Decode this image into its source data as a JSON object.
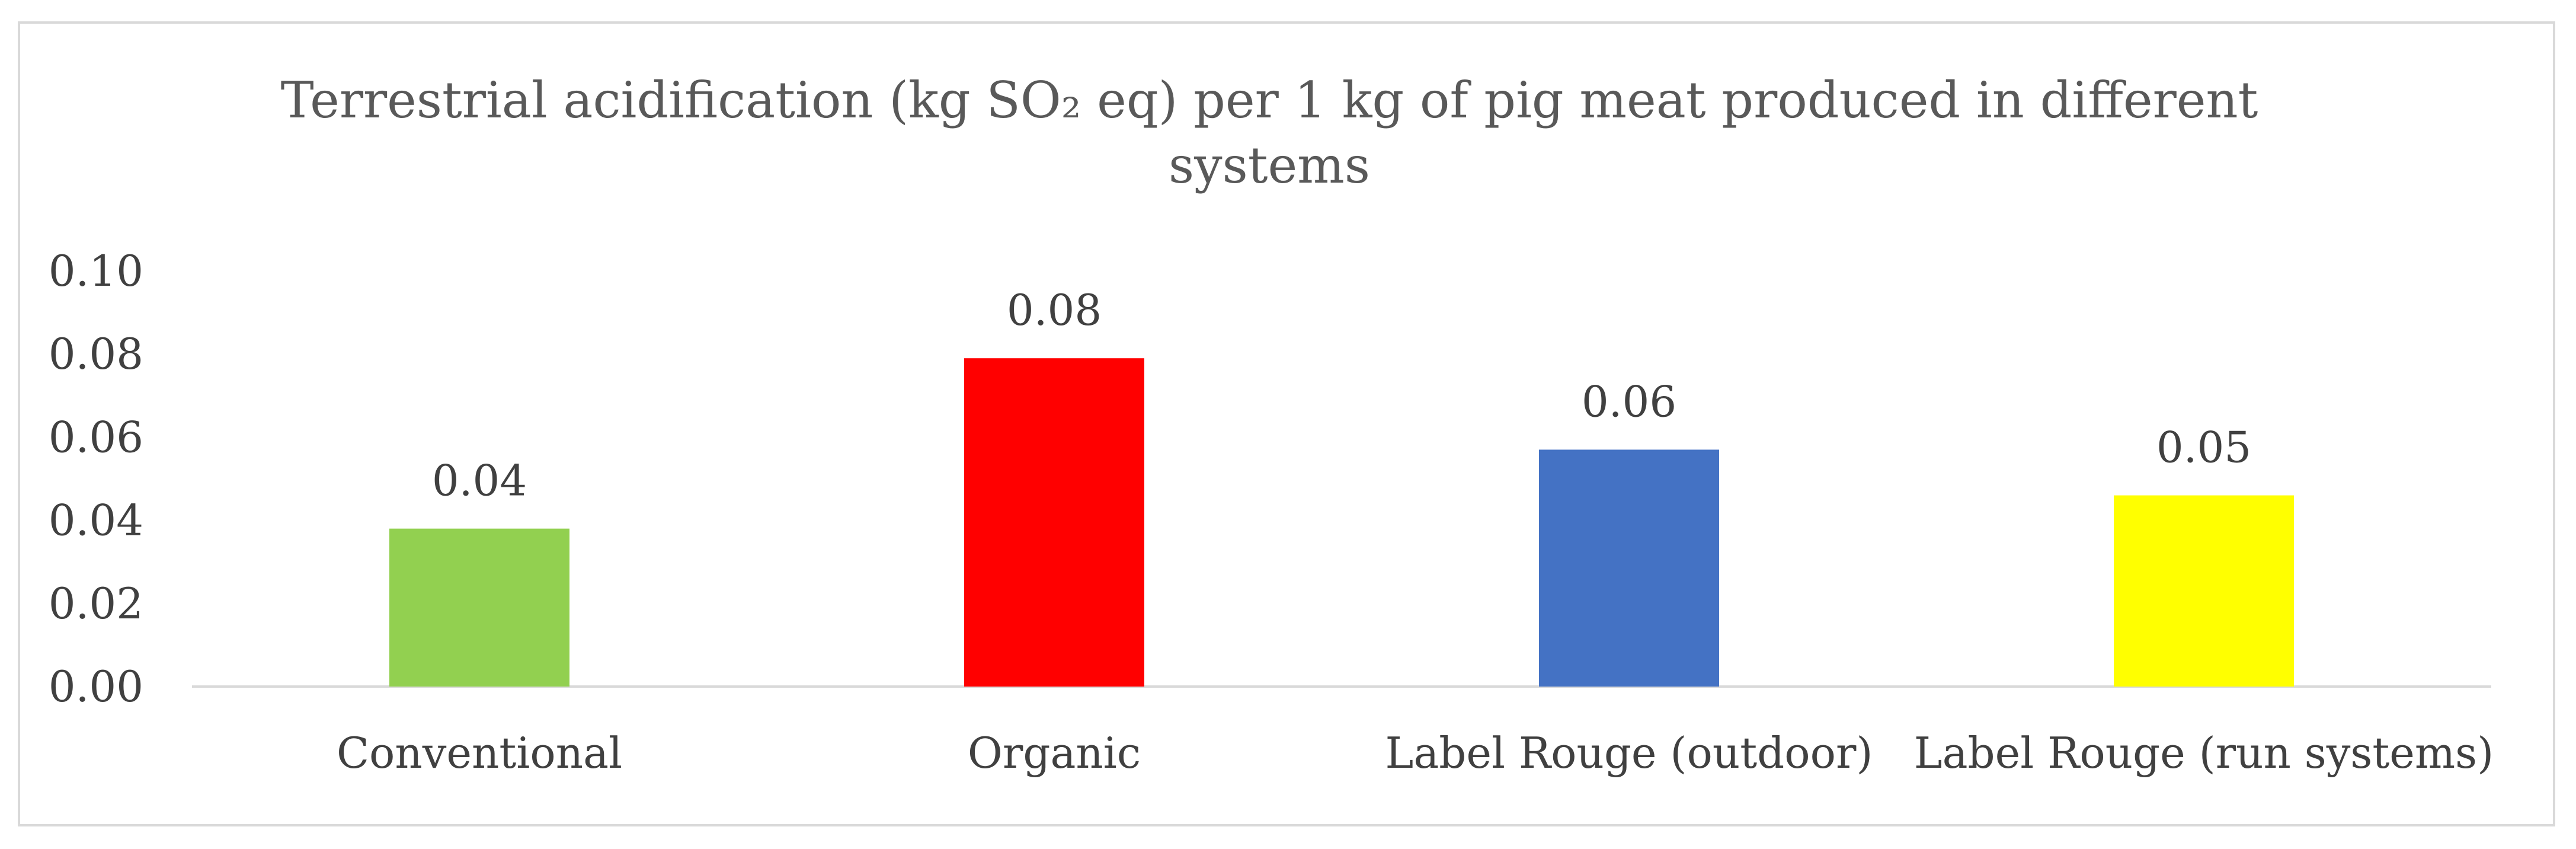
{
  "chart_data": {
    "type": "bar",
    "title": "Terrestrial acidification (kg SO₂ eq) per 1 kg of pig meat produced in different systems",
    "title_lines": [
      "Terrestrial acidification (kg SO₂ eq) per 1 kg of pig meat produced in different",
      "systems"
    ],
    "xlabel": "",
    "ylabel": "",
    "categories": [
      "Conventional",
      "Organic",
      "Label Rouge (outdoor)",
      "Label Rouge (run systems)"
    ],
    "values": [
      0.038,
      0.079,
      0.057,
      0.046
    ],
    "data_labels": [
      "0.04",
      "0.08",
      "0.06",
      "0.05"
    ],
    "bar_colors": [
      "#92d050",
      "#ff0000",
      "#4472c4",
      "#ffff00"
    ],
    "ylim": [
      0,
      0.1
    ],
    "y_ticks": [
      0.0,
      0.02,
      0.04,
      0.06,
      0.08,
      0.1
    ],
    "y_tick_labels": [
      "0.00",
      "0.02",
      "0.04",
      "0.06",
      "0.08",
      "0.10"
    ],
    "grid": false,
    "legend": "none"
  }
}
